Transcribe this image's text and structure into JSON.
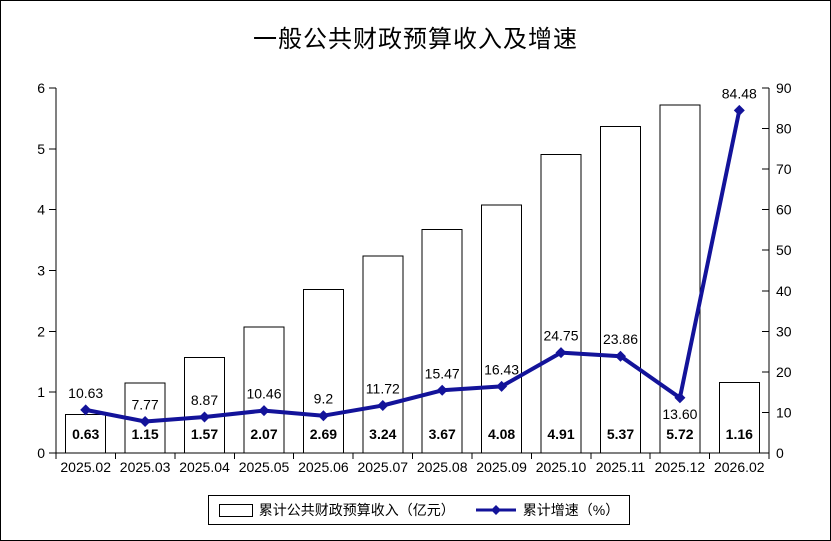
{
  "title": "一般公共财政预算收入及增速",
  "colors": {
    "accent_line": "#13139a",
    "bar_fill": "#ffffff",
    "bar_border": "#000000",
    "axis": "#000000",
    "text": "#000000"
  },
  "chart_data": {
    "type": "bar",
    "subtype": "bar+line combo with dual y-axes",
    "title": "一般公共财政预算收入及增速",
    "categories": [
      "2025.02",
      "2025.03",
      "2025.04",
      "2025.05",
      "2025.06",
      "2025.07",
      "2025.08",
      "2025.09",
      "2025.10",
      "2025.11",
      "2025.12",
      "2026.02"
    ],
    "series": [
      {
        "name": "累计公共财政预算收入（亿元）",
        "type": "bar",
        "axis": "left",
        "values": [
          0.63,
          1.15,
          1.57,
          2.07,
          2.69,
          3.24,
          3.67,
          4.08,
          4.91,
          5.37,
          5.72,
          1.16
        ],
        "data_labels": [
          "0.63",
          "1.15",
          "1.57",
          "2.07",
          "2.69",
          "3.24",
          "3.67",
          "4.08",
          "4.91",
          "5.37",
          "5.72",
          "1.16"
        ]
      },
      {
        "name": "累计增速（%）",
        "type": "line",
        "axis": "right",
        "values": [
          10.63,
          7.77,
          8.87,
          10.46,
          9.2,
          11.72,
          15.47,
          16.43,
          24.75,
          23.86,
          13.6,
          84.48
        ],
        "data_labels": [
          "10.63",
          "7.77",
          "8.87",
          "10.46",
          "9.2",
          "11.72",
          "15.47",
          "16.43",
          "24.75",
          "23.86",
          "13.60",
          "84.48"
        ],
        "label_placement": [
          "above",
          "above",
          "above",
          "above",
          "above",
          "above",
          "above",
          "above",
          "above",
          "above",
          "below",
          "above"
        ]
      }
    ],
    "left_axis": {
      "min": 0,
      "max": 6,
      "step": 1,
      "tick_labels": [
        "0",
        "1",
        "2",
        "3",
        "4",
        "5",
        "6"
      ]
    },
    "right_axis": {
      "min": 0,
      "max": 90,
      "step": 10,
      "tick_labels": [
        "0",
        "10",
        "20",
        "30",
        "40",
        "50",
        "60",
        "70",
        "80",
        "90"
      ]
    },
    "grid": false,
    "legend_position": "bottom"
  },
  "legend": {
    "items": [
      {
        "label": "累计公共财政预算收入（亿元）",
        "swatch": "bar"
      },
      {
        "label": "累计增速（%）",
        "swatch": "line"
      }
    ]
  }
}
